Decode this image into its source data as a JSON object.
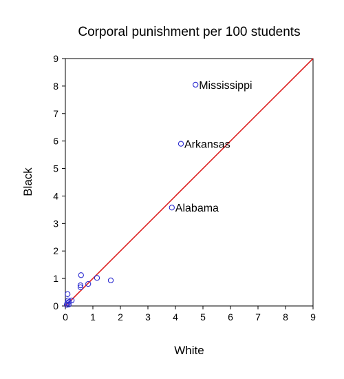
{
  "chart_data": {
    "type": "scatter",
    "title": "Corporal punishment per 100 students",
    "xlabel": "White",
    "ylabel": "Black",
    "xlim": [
      0,
      9
    ],
    "ylim": [
      0,
      9
    ],
    "xticks": [
      "0",
      "1",
      "2",
      "3",
      "4",
      "5",
      "6",
      "7",
      "8",
      "9"
    ],
    "yticks": [
      "0",
      "1",
      "2",
      "3",
      "4",
      "5",
      "6",
      "7",
      "8",
      "9"
    ],
    "grid": false,
    "reference_line": {
      "from": [
        0,
        0
      ],
      "to": [
        9,
        9
      ],
      "color": "#dd2222"
    },
    "marker_color": "#2b2bd0",
    "points": [
      {
        "x": 4.73,
        "y": 8.05,
        "label": "Mississippi"
      },
      {
        "x": 4.2,
        "y": 5.9,
        "label": "Arkansas"
      },
      {
        "x": 3.87,
        "y": 3.58,
        "label": "Alabama"
      },
      {
        "x": 1.65,
        "y": 0.93
      },
      {
        "x": 1.15,
        "y": 1.02
      },
      {
        "x": 0.83,
        "y": 0.8
      },
      {
        "x": 0.57,
        "y": 1.12
      },
      {
        "x": 0.55,
        "y": 0.75
      },
      {
        "x": 0.55,
        "y": 0.68
      },
      {
        "x": 0.23,
        "y": 0.2
      },
      {
        "x": 0.14,
        "y": 0.15
      },
      {
        "x": 0.1,
        "y": 0.2
      },
      {
        "x": 0.08,
        "y": 0.43
      },
      {
        "x": 0.07,
        "y": 0.1
      },
      {
        "x": 0.05,
        "y": 0.04
      },
      {
        "x": 0.12,
        "y": 0.05
      }
    ]
  }
}
